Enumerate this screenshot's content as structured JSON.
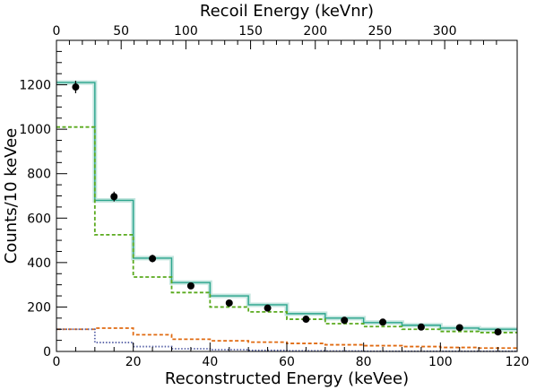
{
  "chart_data": {
    "type": "line",
    "title": "",
    "xlabel": "Reconstructed Energy (keVee)",
    "ylabel": "Counts/10 keVee",
    "x2label": "Recoil Energy (keVnr)",
    "xlim": [
      0,
      120
    ],
    "ylim": [
      0,
      1400
    ],
    "x2lim": [
      0,
      356
    ],
    "x_ticks": [
      0,
      20,
      40,
      60,
      80,
      100,
      120
    ],
    "y_ticks": [
      0,
      200,
      400,
      600,
      800,
      1000,
      1200
    ],
    "x2_ticks": [
      0,
      50,
      100,
      150,
      200,
      250,
      300
    ],
    "grid": false,
    "bin_edges": [
      0,
      10,
      20,
      30,
      40,
      50,
      60,
      70,
      80,
      90,
      100,
      110,
      120
    ],
    "data_points": {
      "x": [
        5,
        15,
        25,
        35,
        45,
        55,
        65,
        75,
        85,
        95,
        105,
        115
      ],
      "y": [
        1190,
        697,
        418,
        295,
        218,
        195,
        145,
        140,
        132,
        110,
        107,
        88
      ],
      "err": [
        28,
        22,
        17,
        14,
        12,
        11,
        10,
        10,
        9,
        9,
        9,
        8
      ],
      "color": "#000000"
    },
    "series": [
      {
        "values": [
          1210,
          680,
          420,
          310,
          250,
          210,
          170,
          150,
          130,
          118,
          105,
          100
        ],
        "color": "#2ca58d",
        "style": "solid",
        "band": true
      },
      {
        "values": [
          1010,
          525,
          335,
          265,
          200,
          178,
          145,
          125,
          112,
          100,
          90,
          85
        ],
        "color": "#5aaa1e",
        "style": "dashed"
      },
      {
        "values": [
          100,
          105,
          75,
          55,
          48,
          42,
          36,
          30,
          26,
          22,
          18,
          15
        ],
        "color": "#e06a10",
        "style": "dashed"
      },
      {
        "values": [
          100,
          40,
          22,
          12,
          8,
          5,
          3,
          2,
          1,
          1,
          1,
          1
        ],
        "color": "#5a64a8",
        "style": "dotted"
      }
    ]
  }
}
